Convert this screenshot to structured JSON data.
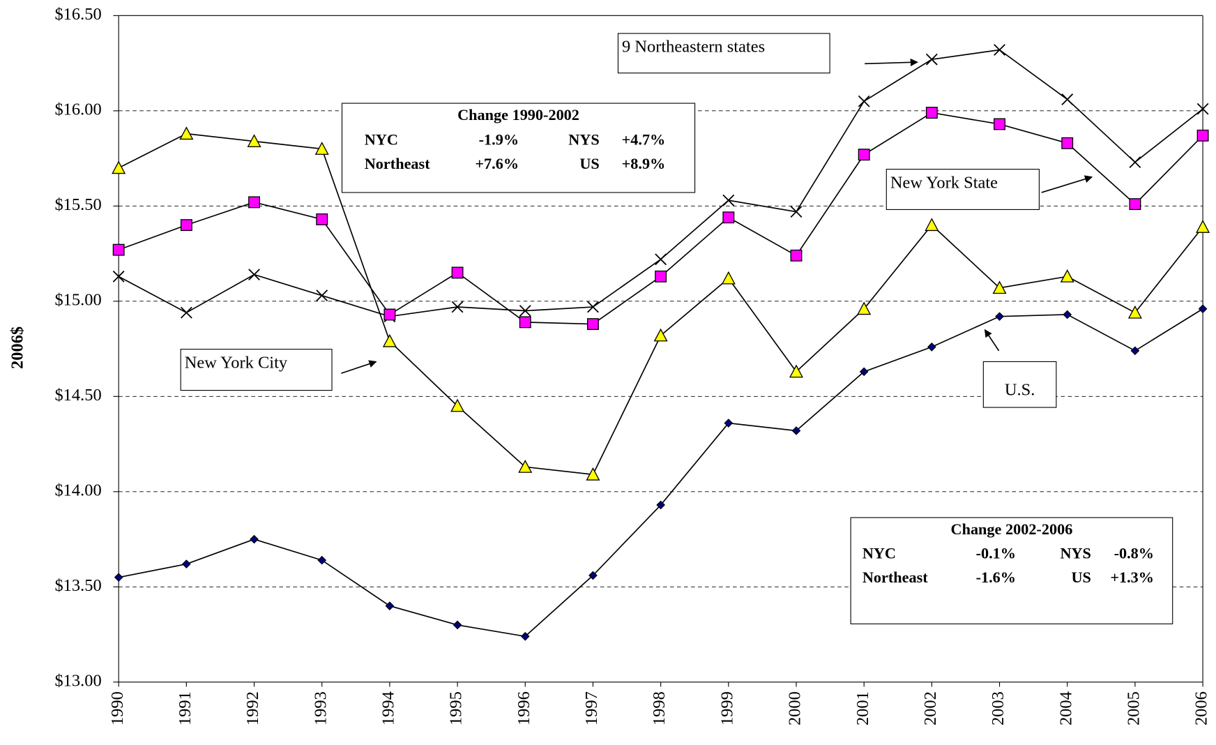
{
  "chart_data": {
    "type": "line",
    "y_label": "2006$",
    "categories": [
      "1990",
      "1991",
      "1992",
      "1993",
      "1994",
      "1995",
      "1996",
      "1997",
      "1998",
      "1999",
      "2000",
      "2001",
      "2002",
      "2003",
      "2004",
      "2005",
      "2006"
    ],
    "ylim": [
      13,
      16.5
    ],
    "yticks": [
      {
        "value": 13,
        "label": "$13.00"
      },
      {
        "value": 13.5,
        "label": "$13.50"
      },
      {
        "value": 14,
        "label": "$14.00"
      },
      {
        "value": 14.5,
        "label": "$14.50"
      },
      {
        "value": 15,
        "label": "$15.00"
      },
      {
        "value": 15.5,
        "label": "$15.50"
      },
      {
        "value": 16,
        "label": "$16.00"
      },
      {
        "value": 16.5,
        "label": "$16.50"
      }
    ],
    "grid": true,
    "series": [
      {
        "name": "9 Northeastern states",
        "marker": "x",
        "color": "#000000",
        "values": [
          15.13,
          14.94,
          15.14,
          15.03,
          14.92,
          14.97,
          14.95,
          14.97,
          15.22,
          15.53,
          15.47,
          16.05,
          16.27,
          16.32,
          16.06,
          15.73,
          16.01
        ]
      },
      {
        "name": "New York State",
        "marker": "square",
        "color": "#ff00ff",
        "values": [
          15.27,
          15.4,
          15.52,
          15.43,
          14.93,
          15.15,
          14.89,
          14.88,
          15.13,
          15.44,
          15.24,
          15.77,
          15.99,
          15.93,
          15.83,
          15.51,
          15.87
        ]
      },
      {
        "name": "New York City",
        "marker": "triangle",
        "color": "#ffff00",
        "values": [
          15.7,
          15.88,
          15.84,
          15.8,
          14.79,
          14.45,
          14.13,
          14.09,
          14.82,
          15.12,
          14.63,
          14.96,
          15.4,
          15.07,
          15.13,
          14.94,
          15.39
        ]
      },
      {
        "name": "U.S.",
        "marker": "diamond",
        "color": "#000080",
        "values": [
          13.55,
          13.62,
          13.75,
          13.64,
          13.4,
          13.3,
          13.24,
          13.56,
          13.93,
          14.36,
          14.32,
          14.63,
          14.76,
          14.92,
          14.93,
          14.74,
          14.96
        ]
      }
    ],
    "change_tables": [
      {
        "title": "Change 1990-2002",
        "rows": [
          [
            "NYC",
            "-1.9%",
            "NYS",
            "+4.7%"
          ],
          [
            "Northeast",
            "+7.6%",
            "US",
            "+8.9%"
          ]
        ]
      },
      {
        "title": "Change 2002-2006",
        "rows": [
          [
            "NYC",
            "-0.1%",
            "NYS",
            "-0.8%"
          ],
          [
            "Northeast",
            "-1.6%",
            "US",
            "+1.3%"
          ]
        ]
      }
    ]
  }
}
